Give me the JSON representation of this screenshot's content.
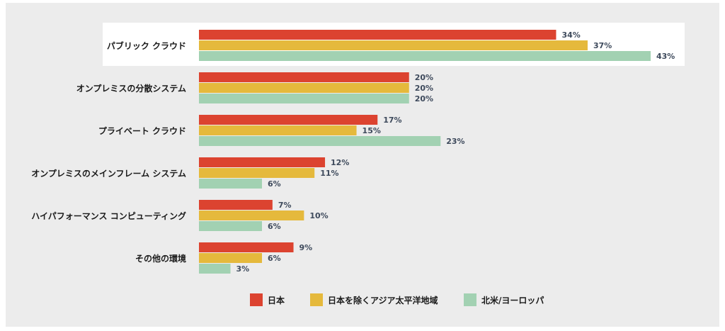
{
  "chart_data": {
    "type": "bar",
    "orientation": "horizontal",
    "title": "",
    "xlabel": "",
    "ylabel": "",
    "xlim": [
      0,
      43
    ],
    "grid": false,
    "legend_position": "bottom",
    "highlighted_category": "パブリック クラウド",
    "categories": [
      "パブリック クラウド",
      "オンプレミスの分散システム",
      "プライベート クラウド",
      "オンプレミスのメインフレーム システム",
      "ハイパフォーマンス コンピューティング",
      "その他の環境"
    ],
    "series": [
      {
        "name": "日本",
        "color": "#dc4330",
        "values": [
          34,
          20,
          17,
          12,
          7,
          9
        ]
      },
      {
        "name": "日本を除くアジア太平洋地域",
        "color": "#e5b93c",
        "values": [
          37,
          20,
          15,
          11,
          10,
          6
        ]
      },
      {
        "name": "北米/ヨーロッパ",
        "color": "#a2d1b2",
        "values": [
          43,
          20,
          23,
          6,
          6,
          3
        ]
      }
    ],
    "value_suffix": "%"
  }
}
